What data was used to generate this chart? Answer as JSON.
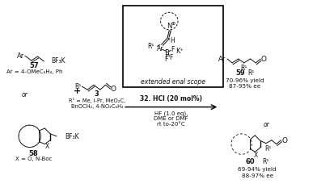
{
  "background_color": "#ffffff",
  "figsize": [
    3.92,
    2.33
  ],
  "dpi": 100,
  "compound_57_label": "57",
  "compound_57_ar": "Ar = 4-OMeC₆H₄, Ph",
  "compound_3_label": "3",
  "compound_3_r1": "R¹ = Me, i-Pr, MeO₂C,",
  "compound_3_r1b": "BnOCH₂, 4-NO₂C₆H₄",
  "compound_58_label": "58",
  "compound_58_sub": "X = O, N-Boc",
  "reagent_bold": "32. HCl (20 mol%)",
  "reagent_sub1": "HF (1.0 eq),",
  "reagent_sub2": "DME or DMF",
  "reagent_sub3": "rt to-20°C",
  "product_59_label": "59",
  "product_59_r1": "R¹",
  "product_59_yield": "70-96% yield",
  "product_59_ee": "87-95% ee",
  "product_60_label": "60",
  "product_60_r1": "R¹",
  "product_60_yield": "69-94% yield",
  "product_60_ee": "88-97% ee",
  "box_label": "extended enal scope",
  "kplus": "K⁺",
  "or_text": "or",
  "plus_text": "+",
  "or2_text": "or"
}
